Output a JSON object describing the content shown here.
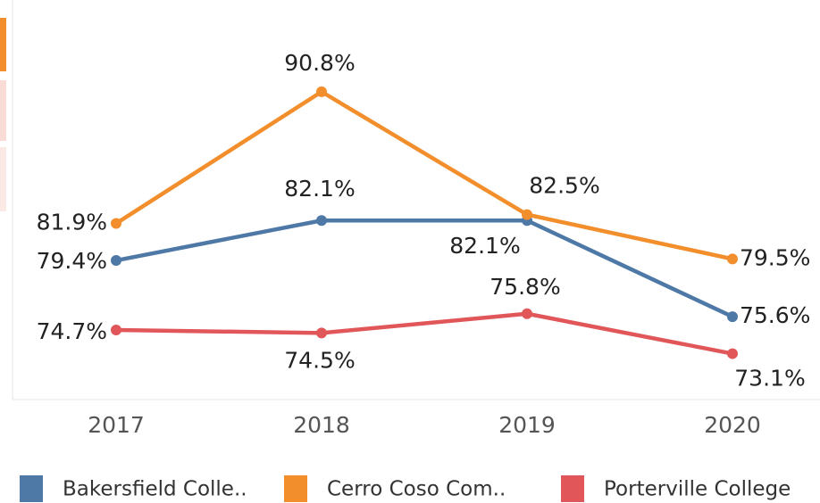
{
  "chart_data": {
    "type": "line",
    "categories": [
      "2017",
      "2018",
      "2019",
      "2020"
    ],
    "ylim": [
      70,
      97
    ],
    "series": [
      {
        "name": "Bakersfield Colle..",
        "color": "#4e79a7",
        "values": [
          79.4,
          82.1,
          82.1,
          75.6
        ],
        "value_labels": [
          "79.4%",
          "82.1%",
          "82.1%",
          "75.6%"
        ]
      },
      {
        "name": "Cerro Coso Com..",
        "color": "#f28e2b",
        "values": [
          81.9,
          90.8,
          82.5,
          79.5
        ],
        "value_labels": [
          "81.9%",
          "90.8%",
          "82.5%",
          "79.5%"
        ]
      },
      {
        "name": "Porterville College",
        "color": "#e15759",
        "values": [
          74.7,
          74.5,
          75.8,
          73.1
        ],
        "value_labels": [
          "74.7%",
          "74.5%",
          "75.8%",
          "73.1%"
        ]
      }
    ]
  }
}
